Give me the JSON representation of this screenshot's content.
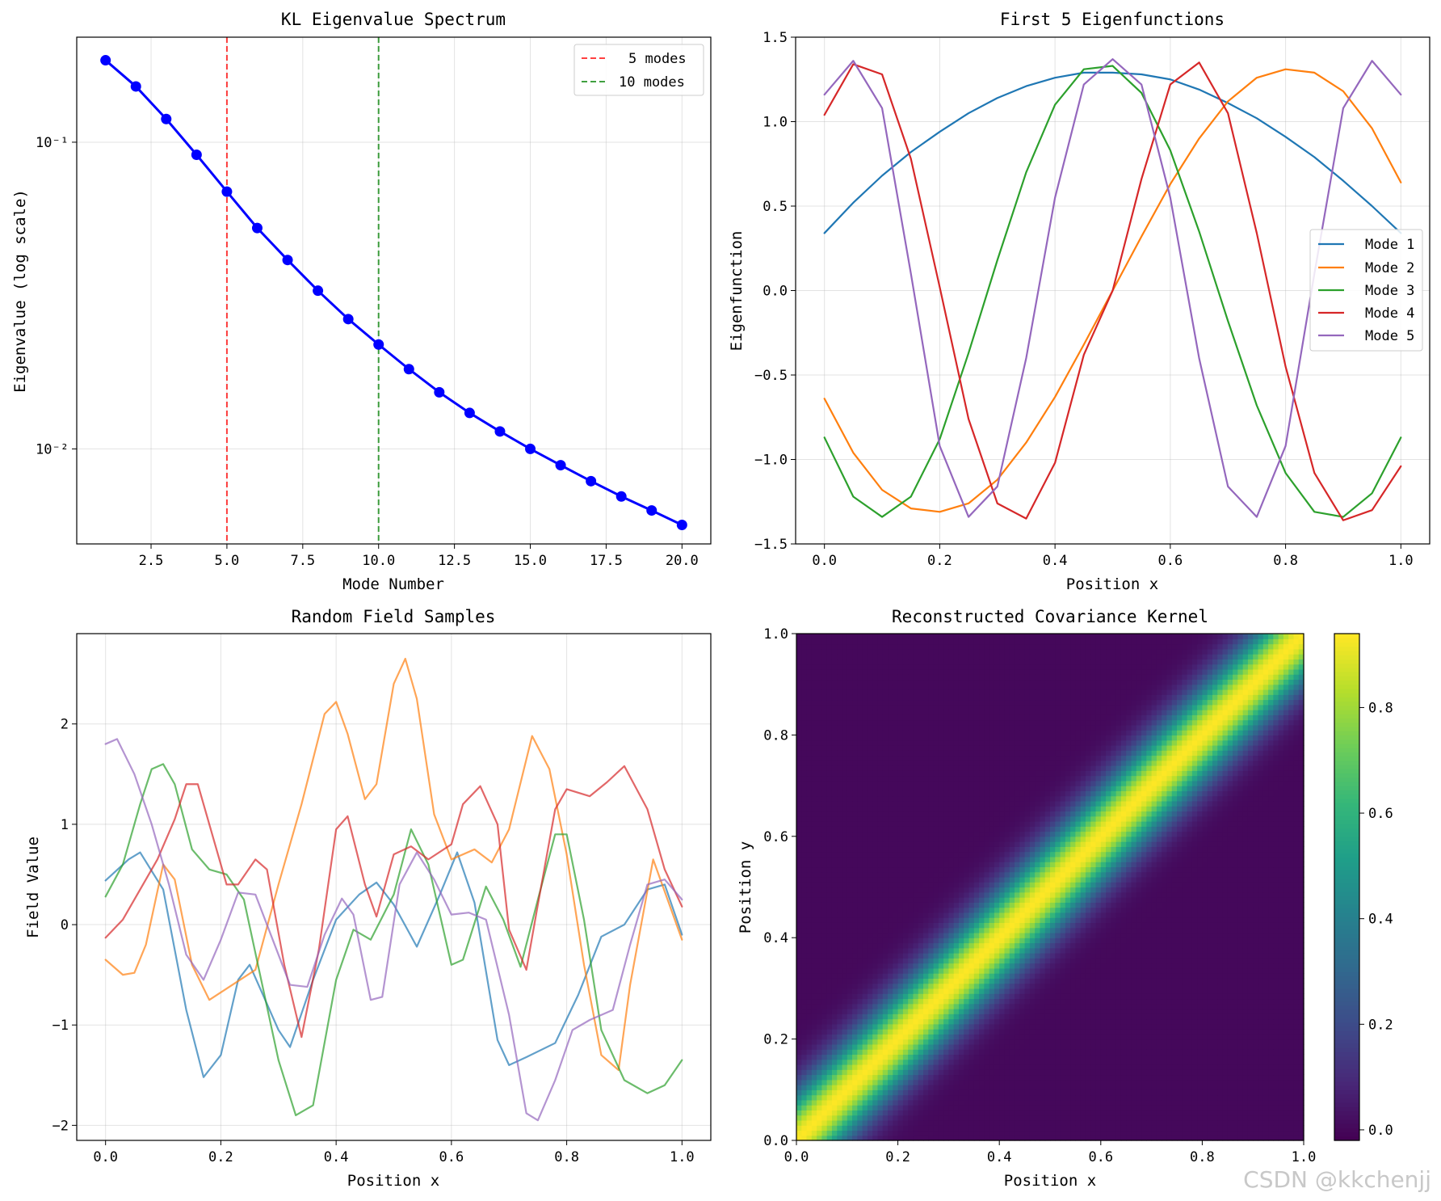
{
  "chart_data": [
    {
      "type": "line",
      "panel": "top-left",
      "title": "KL Eigenvalue Spectrum",
      "xlabel": "Mode Number",
      "ylabel": "Eigenvalue (log scale)",
      "yscale": "log",
      "xlim": [
        0.05,
        20.95
      ],
      "ylim": [
        0.0049,
        0.22
      ],
      "xticks": [
        2.5,
        5.0,
        7.5,
        10.0,
        12.5,
        15.0,
        17.5,
        20.0
      ],
      "xtick_labels": [
        "2.5",
        "5.0",
        "7.5",
        "10.0",
        "12.5",
        "15.0",
        "17.5",
        "20.0"
      ],
      "yticks": [
        0.1,
        0.01
      ],
      "ytick_labels": [
        "10⁻¹",
        "10⁻²"
      ],
      "grid": true,
      "series": [
        {
          "name": "eigenvalues",
          "color": "#0000ff",
          "marker": "o",
          "x": [
            1,
            2,
            3,
            4,
            5,
            6,
            7,
            8,
            9,
            10,
            11,
            12,
            13,
            14,
            15,
            16,
            17,
            18,
            19,
            20
          ],
          "values": [
            0.185,
            0.152,
            0.119,
            0.091,
            0.069,
            0.0525,
            0.0413,
            0.0328,
            0.0265,
            0.0219,
            0.0182,
            0.0153,
            0.0131,
            0.0114,
            0.01,
            0.00885,
            0.00785,
            0.007,
            0.0063,
            0.00565
          ]
        }
      ],
      "vlines": [
        {
          "x": 5,
          "color": "#ff0000",
          "label": "5 modes"
        },
        {
          "x": 10,
          "color": "#008000",
          "label": "10 modes"
        }
      ],
      "legend": {
        "position": "top-right",
        "entries": [
          "5 modes",
          "10 modes"
        ]
      }
    },
    {
      "type": "line",
      "panel": "top-right",
      "title": "First 5 Eigenfunctions",
      "xlabel": "Position x",
      "ylabel": "Eigenfunction",
      "xlim": [
        -0.05,
        1.05
      ],
      "ylim": [
        -1.5,
        1.5
      ],
      "xticks": [
        0.0,
        0.2,
        0.4,
        0.6,
        0.8,
        1.0
      ],
      "xtick_labels": [
        "0.0",
        "0.2",
        "0.4",
        "0.6",
        "0.8",
        "1.0"
      ],
      "yticks": [
        1.5,
        1.0,
        0.5,
        0.0,
        -0.5,
        -1.0,
        -1.5
      ],
      "ytick_labels": [
        "1.5",
        "1.0",
        "0.5",
        "0.0",
        "−0.5",
        "−1.0",
        "−1.5"
      ],
      "grid": true,
      "series": [
        {
          "name": "Mode 1",
          "color": "#1f77b4",
          "x": [
            0,
            0.05,
            0.1,
            0.15,
            0.2,
            0.25,
            0.3,
            0.35,
            0.4,
            0.45,
            0.5,
            0.55,
            0.6,
            0.65,
            0.7,
            0.75,
            0.8,
            0.85,
            0.9,
            0.95,
            1.0
          ],
          "values": [
            0.34,
            0.52,
            0.68,
            0.82,
            0.94,
            1.05,
            1.14,
            1.21,
            1.26,
            1.29,
            1.29,
            1.28,
            1.25,
            1.19,
            1.11,
            1.02,
            0.91,
            0.79,
            0.65,
            0.5,
            0.34
          ]
        },
        {
          "name": "Mode 2",
          "color": "#ff7f0e",
          "x": [
            0,
            0.05,
            0.1,
            0.15,
            0.2,
            0.25,
            0.3,
            0.35,
            0.4,
            0.45,
            0.5,
            0.55,
            0.6,
            0.65,
            0.7,
            0.75,
            0.8,
            0.85,
            0.9,
            0.95,
            1.0
          ],
          "values": [
            -0.64,
            -0.96,
            -1.18,
            -1.29,
            -1.31,
            -1.26,
            -1.12,
            -0.9,
            -0.63,
            -0.32,
            0.0,
            0.32,
            0.63,
            0.9,
            1.12,
            1.26,
            1.31,
            1.29,
            1.18,
            0.96,
            0.64
          ]
        },
        {
          "name": "Mode 3",
          "color": "#2ca02c",
          "x": [
            0,
            0.05,
            0.1,
            0.15,
            0.2,
            0.25,
            0.3,
            0.35,
            0.4,
            0.45,
            0.5,
            0.55,
            0.6,
            0.65,
            0.7,
            0.75,
            0.8,
            0.85,
            0.9,
            0.95,
            1.0
          ],
          "values": [
            -0.87,
            -1.22,
            -1.34,
            -1.22,
            -0.88,
            -0.37,
            0.18,
            0.7,
            1.1,
            1.31,
            1.33,
            1.17,
            0.83,
            0.35,
            -0.18,
            -0.68,
            -1.08,
            -1.31,
            -1.34,
            -1.2,
            -0.87
          ]
        },
        {
          "name": "Mode 4",
          "color": "#d62728",
          "x": [
            0,
            0.05,
            0.1,
            0.15,
            0.2,
            0.25,
            0.3,
            0.35,
            0.4,
            0.45,
            0.5,
            0.55,
            0.6,
            0.65,
            0.7,
            0.75,
            0.8,
            0.85,
            0.9,
            0.95,
            1.0
          ],
          "values": [
            1.04,
            1.34,
            1.28,
            0.78,
            0.02,
            -0.76,
            -1.26,
            -1.35,
            -1.02,
            -0.38,
            0.0,
            0.66,
            1.22,
            1.35,
            1.05,
            0.34,
            -0.45,
            -1.08,
            -1.36,
            -1.3,
            -1.04
          ]
        },
        {
          "name": "Mode 5",
          "color": "#9467bd",
          "x": [
            0,
            0.05,
            0.1,
            0.15,
            0.2,
            0.25,
            0.3,
            0.35,
            0.4,
            0.45,
            0.5,
            0.55,
            0.6,
            0.65,
            0.7,
            0.75,
            0.8,
            0.85,
            0.9,
            0.95,
            1.0
          ],
          "values": [
            1.16,
            1.36,
            1.08,
            0.1,
            -0.92,
            -1.34,
            -1.16,
            -0.4,
            0.55,
            1.22,
            1.37,
            1.22,
            0.55,
            -0.4,
            -1.16,
            -1.34,
            -0.92,
            0.1,
            1.08,
            1.36,
            1.16
          ]
        }
      ],
      "legend": {
        "position": "center-right",
        "entries": [
          "Mode 1",
          "Mode 2",
          "Mode 3",
          "Mode 4",
          "Mode 5"
        ]
      }
    },
    {
      "type": "line",
      "panel": "bottom-left",
      "title": "Random Field Samples",
      "xlabel": "Position x",
      "ylabel": "Field Value",
      "xlim": [
        -0.05,
        1.05
      ],
      "ylim": [
        -2.15,
        2.9
      ],
      "xticks": [
        0.0,
        0.2,
        0.4,
        0.6,
        0.8,
        1.0
      ],
      "xtick_labels": [
        "0.0",
        "0.2",
        "0.4",
        "0.6",
        "0.8",
        "1.0"
      ],
      "yticks": [
        2,
        1,
        0,
        -1,
        -2
      ],
      "ytick_labels": [
        "2",
        "1",
        "0",
        "−1",
        "−2"
      ],
      "grid": true,
      "series": [
        {
          "name": "sample 1",
          "color": "#1f77b4",
          "x": [
            0,
            0.04,
            0.06,
            0.1,
            0.14,
            0.17,
            0.2,
            0.23,
            0.25,
            0.3,
            0.32,
            0.36,
            0.4,
            0.44,
            0.47,
            0.5,
            0.54,
            0.58,
            0.61,
            0.64,
            0.68,
            0.7,
            0.73,
            0.78,
            0.82,
            0.86,
            0.9,
            0.94,
            0.97,
            1.0
          ],
          "values": [
            0.44,
            0.65,
            0.72,
            0.35,
            -0.85,
            -1.52,
            -1.3,
            -0.55,
            -0.4,
            -1.05,
            -1.22,
            -0.55,
            0.05,
            0.3,
            0.42,
            0.2,
            -0.22,
            0.3,
            0.72,
            0.22,
            -1.15,
            -1.4,
            -1.32,
            -1.18,
            -0.7,
            -0.12,
            0.0,
            0.35,
            0.4,
            -0.1
          ]
        },
        {
          "name": "sample 2",
          "color": "#ff7f0e",
          "x": [
            0,
            0.03,
            0.05,
            0.07,
            0.1,
            0.12,
            0.15,
            0.18,
            0.22,
            0.26,
            0.3,
            0.34,
            0.38,
            0.4,
            0.42,
            0.45,
            0.47,
            0.5,
            0.52,
            0.54,
            0.57,
            0.6,
            0.64,
            0.67,
            0.7,
            0.74,
            0.77,
            0.8,
            0.83,
            0.86,
            0.89,
            0.91,
            0.95,
            1.0
          ],
          "values": [
            -0.35,
            -0.5,
            -0.48,
            -0.2,
            0.6,
            0.45,
            -0.4,
            -0.75,
            -0.6,
            -0.45,
            0.4,
            1.2,
            2.1,
            2.22,
            1.9,
            1.25,
            1.4,
            2.4,
            2.65,
            2.25,
            1.1,
            0.65,
            0.75,
            0.62,
            0.95,
            1.88,
            1.55,
            0.7,
            -0.4,
            -1.3,
            -1.45,
            -0.6,
            0.65,
            -0.15
          ]
        },
        {
          "name": "sample 3",
          "color": "#2ca02c",
          "x": [
            0,
            0.03,
            0.06,
            0.08,
            0.1,
            0.12,
            0.15,
            0.18,
            0.21,
            0.24,
            0.27,
            0.3,
            0.33,
            0.36,
            0.4,
            0.43,
            0.46,
            0.5,
            0.53,
            0.56,
            0.6,
            0.62,
            0.66,
            0.69,
            0.72,
            0.75,
            0.78,
            0.8,
            0.83,
            0.86,
            0.9,
            0.94,
            0.97,
            1.0
          ],
          "values": [
            0.28,
            0.6,
            1.2,
            1.55,
            1.6,
            1.4,
            0.75,
            0.55,
            0.5,
            0.25,
            -0.55,
            -1.35,
            -1.9,
            -1.8,
            -0.55,
            -0.05,
            -0.15,
            0.3,
            0.95,
            0.6,
            -0.4,
            -0.35,
            0.38,
            0.05,
            -0.42,
            0.25,
            0.9,
            0.9,
            0.05,
            -1.05,
            -1.55,
            -1.68,
            -1.6,
            -1.35
          ]
        },
        {
          "name": "sample 4",
          "color": "#d62728",
          "x": [
            0,
            0.03,
            0.06,
            0.09,
            0.12,
            0.14,
            0.16,
            0.18,
            0.21,
            0.23,
            0.26,
            0.28,
            0.31,
            0.34,
            0.37,
            0.4,
            0.42,
            0.45,
            0.47,
            0.5,
            0.53,
            0.56,
            0.6,
            0.62,
            0.65,
            0.68,
            0.7,
            0.73,
            0.75,
            0.78,
            0.8,
            0.84,
            0.87,
            0.9,
            0.94,
            0.97,
            1.0
          ],
          "values": [
            -0.13,
            0.05,
            0.35,
            0.65,
            1.05,
            1.4,
            1.4,
            1.0,
            0.4,
            0.4,
            0.65,
            0.55,
            -0.4,
            -1.12,
            -0.25,
            0.95,
            1.08,
            0.4,
            0.08,
            0.7,
            0.78,
            0.65,
            0.8,
            1.2,
            1.38,
            1.0,
            -0.05,
            -0.45,
            0.2,
            1.15,
            1.35,
            1.28,
            1.42,
            1.58,
            1.15,
            0.55,
            0.18
          ]
        },
        {
          "name": "sample 5",
          "color": "#9467bd",
          "x": [
            0,
            0.02,
            0.05,
            0.08,
            0.11,
            0.14,
            0.17,
            0.2,
            0.23,
            0.26,
            0.29,
            0.32,
            0.35,
            0.38,
            0.41,
            0.43,
            0.46,
            0.48,
            0.51,
            0.54,
            0.57,
            0.6,
            0.63,
            0.66,
            0.7,
            0.73,
            0.75,
            0.78,
            0.81,
            0.84,
            0.88,
            0.91,
            0.94,
            0.97,
            1.0
          ],
          "values": [
            1.8,
            1.85,
            1.5,
            1.0,
            0.4,
            -0.3,
            -0.55,
            -0.15,
            0.32,
            0.3,
            -0.15,
            -0.6,
            -0.62,
            -0.1,
            0.26,
            0.1,
            -0.75,
            -0.72,
            0.4,
            0.72,
            0.45,
            0.1,
            0.12,
            0.05,
            -0.9,
            -1.88,
            -1.95,
            -1.55,
            -1.05,
            -0.95,
            -0.85,
            -0.2,
            0.4,
            0.45,
            0.25
          ]
        }
      ]
    },
    {
      "type": "heatmap",
      "panel": "bottom-right",
      "title": "Reconstructed Covariance Kernel",
      "xlabel": "Position x",
      "ylabel": "Position y",
      "xlim": [
        0.0,
        1.0
      ],
      "ylim": [
        0.0,
        1.0
      ],
      "xticks": [
        0.0,
        0.2,
        0.4,
        0.6,
        0.8,
        1.0
      ],
      "xtick_labels": [
        "0.0",
        "0.2",
        "0.4",
        "0.6",
        "0.8",
        "1.0"
      ],
      "yticks": [
        0.0,
        0.2,
        0.4,
        0.6,
        0.8,
        1.0
      ],
      "ytick_labels": [
        "0.0",
        "0.2",
        "0.4",
        "0.6",
        "0.8",
        "1.0"
      ],
      "kernel": "exp(-(x-y)^2 / (2*l^2))",
      "correlation_length": 0.065,
      "grid_n": 100,
      "vmin": -0.02,
      "vmax": 0.94,
      "colormap": "viridis",
      "colorbar": {
        "ticks": [
          0.0,
          0.2,
          0.4,
          0.6,
          0.8
        ],
        "tick_labels": [
          "0.0",
          "0.2",
          "0.4",
          "0.6",
          "0.8"
        ]
      }
    }
  ],
  "watermark": "CSDN @kkchenjj"
}
